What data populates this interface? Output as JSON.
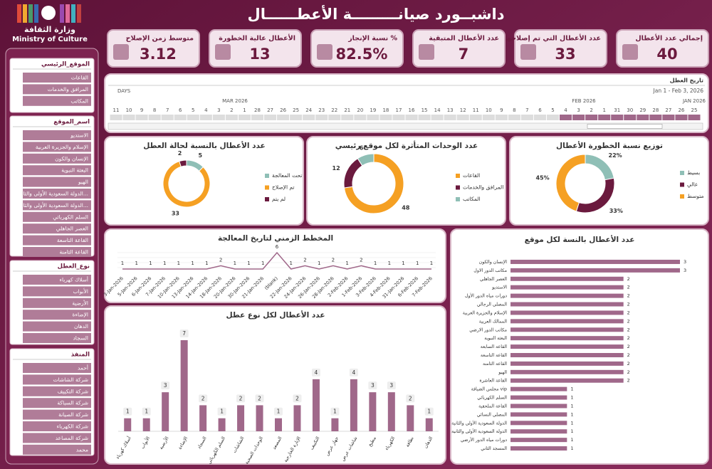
{
  "header": {
    "title": "داشبــورد صيانـــــــــة الأعطــــــال",
    "logo_ar": "وزارة الثقافة",
    "logo_en": "Ministry of Culture"
  },
  "kpis": [
    {
      "label": "إجمالي عدد الأعطال",
      "value": 40
    },
    {
      "label": "عدد الأعطال التي تم إصلاحها",
      "value": 33
    },
    {
      "label": "عدد الأعطال المتبقية",
      "value": 7
    },
    {
      "label": "نسبة الإنجاز %",
      "value": "82.5%"
    },
    {
      "label": "الأعطال عالية الخطورة",
      "value": 13
    },
    {
      "label": "متوسط زمن الإصلاح",
      "value": 3.12
    }
  ],
  "slicers": [
    {
      "title": "الموقع_الرئيسي",
      "items": [
        "القاعات",
        "المرافق والخدمات",
        "المكاتب"
      ]
    },
    {
      "title": "اسم_الموقع",
      "items": [
        "الاستديو",
        "الإسلام والجزيرة العربية",
        "الإنسان والكون",
        "البعثة النبوية",
        "الهيو",
        "الدولة السعودية الأولى والثا...",
        "الدولة السعودية الأولى والثا...",
        "السلم الكهربائي",
        "العصر الجاهلي",
        "القاعة التاسعة",
        "القاعة الثامنة"
      ]
    },
    {
      "title": "نوع_العطل",
      "items": [
        "أسلاك كهرباء",
        "الأبواب",
        "الأرضية",
        "الإضاءة",
        "الدهان",
        "السجاد"
      ]
    },
    {
      "title": "المنفذ",
      "items": [
        "أحمد",
        "شركة الشاشات",
        "شركة التكييف",
        "شركة السباكة",
        "شركة الصيانة",
        "شركة الكهرباء",
        "شركة المصاعد",
        "محمد"
      ]
    }
  ],
  "timeline": {
    "title": "تاريخ العطل",
    "range": "Jan 1 - Feb 3, 2026",
    "unit": "DAYS",
    "months": [
      "MAR 2026",
      "FEB 2026",
      "JAN 2026"
    ],
    "days": [
      11,
      10,
      9,
      8,
      7,
      6,
      5,
      4,
      3,
      2,
      1,
      28,
      27,
      26,
      25,
      24,
      23,
      22,
      21,
      20,
      19,
      18,
      17,
      16,
      15,
      14,
      13,
      12,
      11,
      10,
      9,
      8,
      7,
      6,
      5,
      4,
      3,
      2,
      1,
      31,
      30,
      29,
      28,
      27,
      26,
      25
    ]
  },
  "chart_data": [
    {
      "type": "donut",
      "title": "عدد الأعطال بالنسبة لحالة العطل",
      "categories": [
        "تحت المعالجة",
        "تم الإصلاح",
        "لم يتم"
      ],
      "values": [
        5,
        33,
        2
      ],
      "colors": [
        "#8fbfb6",
        "#f5a023",
        "#6b1a3e"
      ]
    },
    {
      "type": "donut",
      "title": "عدد الوحدات المتأثرة لكل موقع رئيسي",
      "categories": [
        "القاعات",
        "المرافق والخدمات",
        "المكاتب"
      ],
      "values": [
        48,
        12,
        6
      ],
      "colors": [
        "#f5a023",
        "#6b1a3e",
        "#8fbfb6"
      ]
    },
    {
      "type": "donut",
      "title": "توزيع نسبة الخطورة الأعطال",
      "categories": [
        "بسيط",
        "عالي",
        "متوسط"
      ],
      "values": [
        22,
        33,
        45
      ],
      "value_labels": [
        "22%",
        "33%",
        "45%"
      ],
      "colors": [
        "#8fbfb6",
        "#6b1a3e",
        "#f5a023"
      ]
    },
    {
      "type": "line",
      "title": "المخطط الزمني لتاريخ المعالجة",
      "color": "#a0688a",
      "categories": [
        "3-Jan-2026",
        "5-Jan-2026",
        "6-Jan-2026",
        "7-Jan-2026",
        "10-Jan-2026",
        "13-Jan-2026",
        "14-Jan-2026",
        "18-Jan-2026",
        "20-Jan-2026",
        "30-Jan-2026",
        "21-Jan-2026",
        "(blank)",
        "22-Jan-2026",
        "24-Jan-2026",
        "26-Jan-2026",
        "28-Jan-2026",
        "2-Feb-2026",
        "1-Feb-2026",
        "3-Feb-2026",
        "4-Feb-2026",
        "31-Jan-2026",
        "6-Feb-2026",
        "7-Feb-2026"
      ],
      "values": [
        1,
        1,
        1,
        1,
        1,
        1,
        1,
        2,
        1,
        1,
        1,
        6,
        1,
        2,
        1,
        2,
        1,
        2,
        1,
        1,
        1,
        1,
        1
      ]
    },
    {
      "type": "bar",
      "title": "عدد الأعطال لكل نوع عطل",
      "color": "#a0688a",
      "categories": [
        "أسلاك كهرباء",
        "الأبواب",
        "الأرضية",
        "الإضاءة",
        "السجاد",
        "السلم الكهربائي",
        "الشاشات",
        "الوحدات الصحية",
        "المصعد",
        "الإنارة الخارجية",
        "التكييف",
        "جهاز عرض",
        "شاشات عرض",
        "مطبخ",
        "الكهرباء",
        "نظافة",
        "الدهان"
      ],
      "values": [
        1,
        1,
        3,
        7,
        2,
        1,
        2,
        2,
        1,
        2,
        4,
        1,
        4,
        3,
        3,
        2,
        1
      ]
    },
    {
      "type": "hbar",
      "title": "عدد الأعطال بالنسة لكل موقع",
      "color": "#a0688a",
      "categories": [
        "الإنسان والكون",
        "مكاتب الدور الاول",
        "العصر الجاهلي",
        "الاستديو",
        "دورات مياه الدور الأول",
        "المصلى الرجالي",
        "الإسلام والجزيرة العربية",
        "الممالك العربية",
        "مكاتب الدور الارضي",
        "البعثة النبوية",
        "القاعة السابعة",
        "القاعة التاسعة",
        "القاعة الثامنة",
        "الهيو",
        "القاعة العاشرة",
        "مجلس الضيافة vip",
        "السلم الكهربائي",
        "القاعة الملحقية",
        "المصلى النسائي",
        "الدولة السعودية الأولى والثانية",
        "الدولة السعودية الأولى والثانية",
        "دورات مياه الدور الأرضي",
        "المسجد الثاني"
      ],
      "values": [
        3,
        3,
        2,
        2,
        2,
        2,
        2,
        2,
        2,
        2,
        2,
        2,
        2,
        2,
        2,
        1,
        1,
        1,
        1,
        1,
        1,
        1,
        1
      ]
    }
  ]
}
